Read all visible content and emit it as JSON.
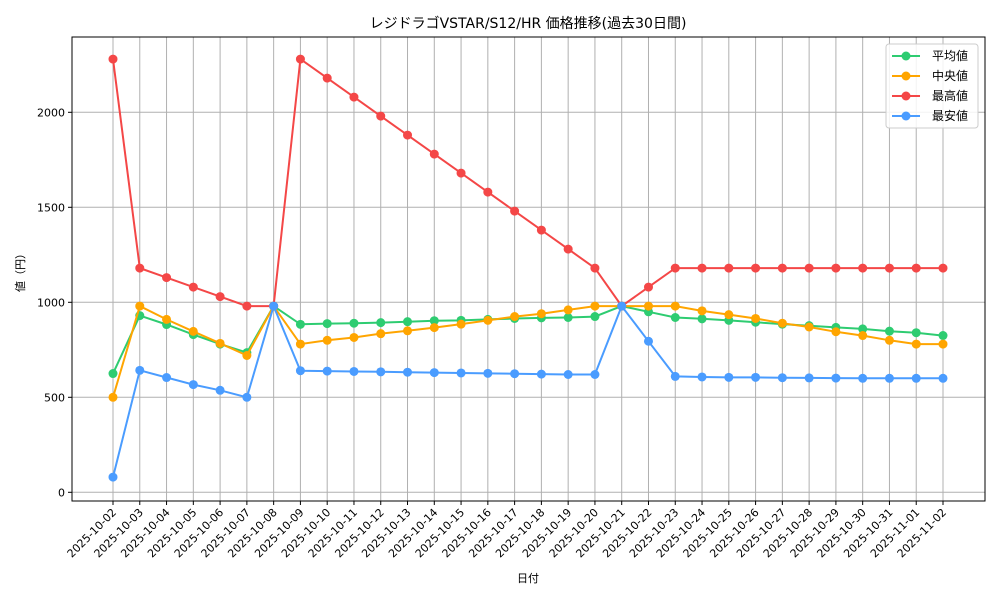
{
  "chart_data": {
    "type": "line",
    "title": "レジドラゴVSTAR/S12/HR 価格推移(過去30日間)",
    "xlabel": "日付",
    "ylabel": "値（円）",
    "ylim": [
      -50,
      2400
    ],
    "yticks": [
      0,
      500,
      1000,
      1500,
      2000
    ],
    "grid": true,
    "legend_position": "upper right",
    "categories": [
      "2025-10-02",
      "2025-10-03",
      "2025-10-04",
      "2025-10-05",
      "2025-10-06",
      "2025-10-07",
      "2025-10-08",
      "2025-10-09",
      "2025-10-10",
      "2025-10-11",
      "2025-10-12",
      "2025-10-13",
      "2025-10-14",
      "2025-10-15",
      "2025-10-16",
      "2025-10-17",
      "2025-10-18",
      "2025-10-19",
      "2025-10-20",
      "2025-10-21",
      "2025-10-22",
      "2025-10-23",
      "2025-10-24",
      "2025-10-25",
      "2025-10-26",
      "2025-10-27",
      "2025-10-28",
      "2025-10-29",
      "2025-10-30",
      "2025-10-31",
      "2025-11-01",
      "2025-11-02"
    ],
    "series": [
      {
        "name": "平均値",
        "color": "#2ecc71",
        "values": [
          625,
          930,
          883,
          830,
          780,
          735,
          980,
          884,
          888,
          890,
          893,
          898,
          903,
          905,
          910,
          915,
          918,
          920,
          925,
          980,
          950,
          920,
          913,
          905,
          895,
          885,
          877,
          868,
          860,
          848,
          840,
          825
        ]
      },
      {
        "name": "中央値",
        "color": "#ffa500",
        "values": [
          500,
          980,
          910,
          847,
          784,
          720,
          980,
          780,
          800,
          815,
          835,
          850,
          867,
          885,
          905,
          925,
          940,
          960,
          980,
          980,
          980,
          980,
          955,
          935,
          915,
          890,
          870,
          845,
          825,
          800,
          780,
          780
        ]
      },
      {
        "name": "最高値",
        "color": "#f44747",
        "values": [
          2280,
          1180,
          1130,
          1080,
          1030,
          980,
          980,
          2280,
          2180,
          2080,
          1980,
          1880,
          1780,
          1680,
          1580,
          1480,
          1380,
          1280,
          1180,
          980,
          1080,
          1180,
          1180,
          1180,
          1180,
          1180,
          1180,
          1180,
          1180,
          1180,
          1180,
          1180
        ]
      },
      {
        "name": "最安値",
        "color": "#4a9cff",
        "values": [
          80,
          642,
          604,
          567,
          537,
          500,
          980,
          640,
          638,
          636,
          634,
          632,
          630,
          628,
          626,
          624,
          622,
          620,
          620,
          980,
          795,
          610,
          607,
          605,
          605,
          603,
          602,
          601,
          600,
          600,
          600,
          600
        ]
      }
    ]
  }
}
